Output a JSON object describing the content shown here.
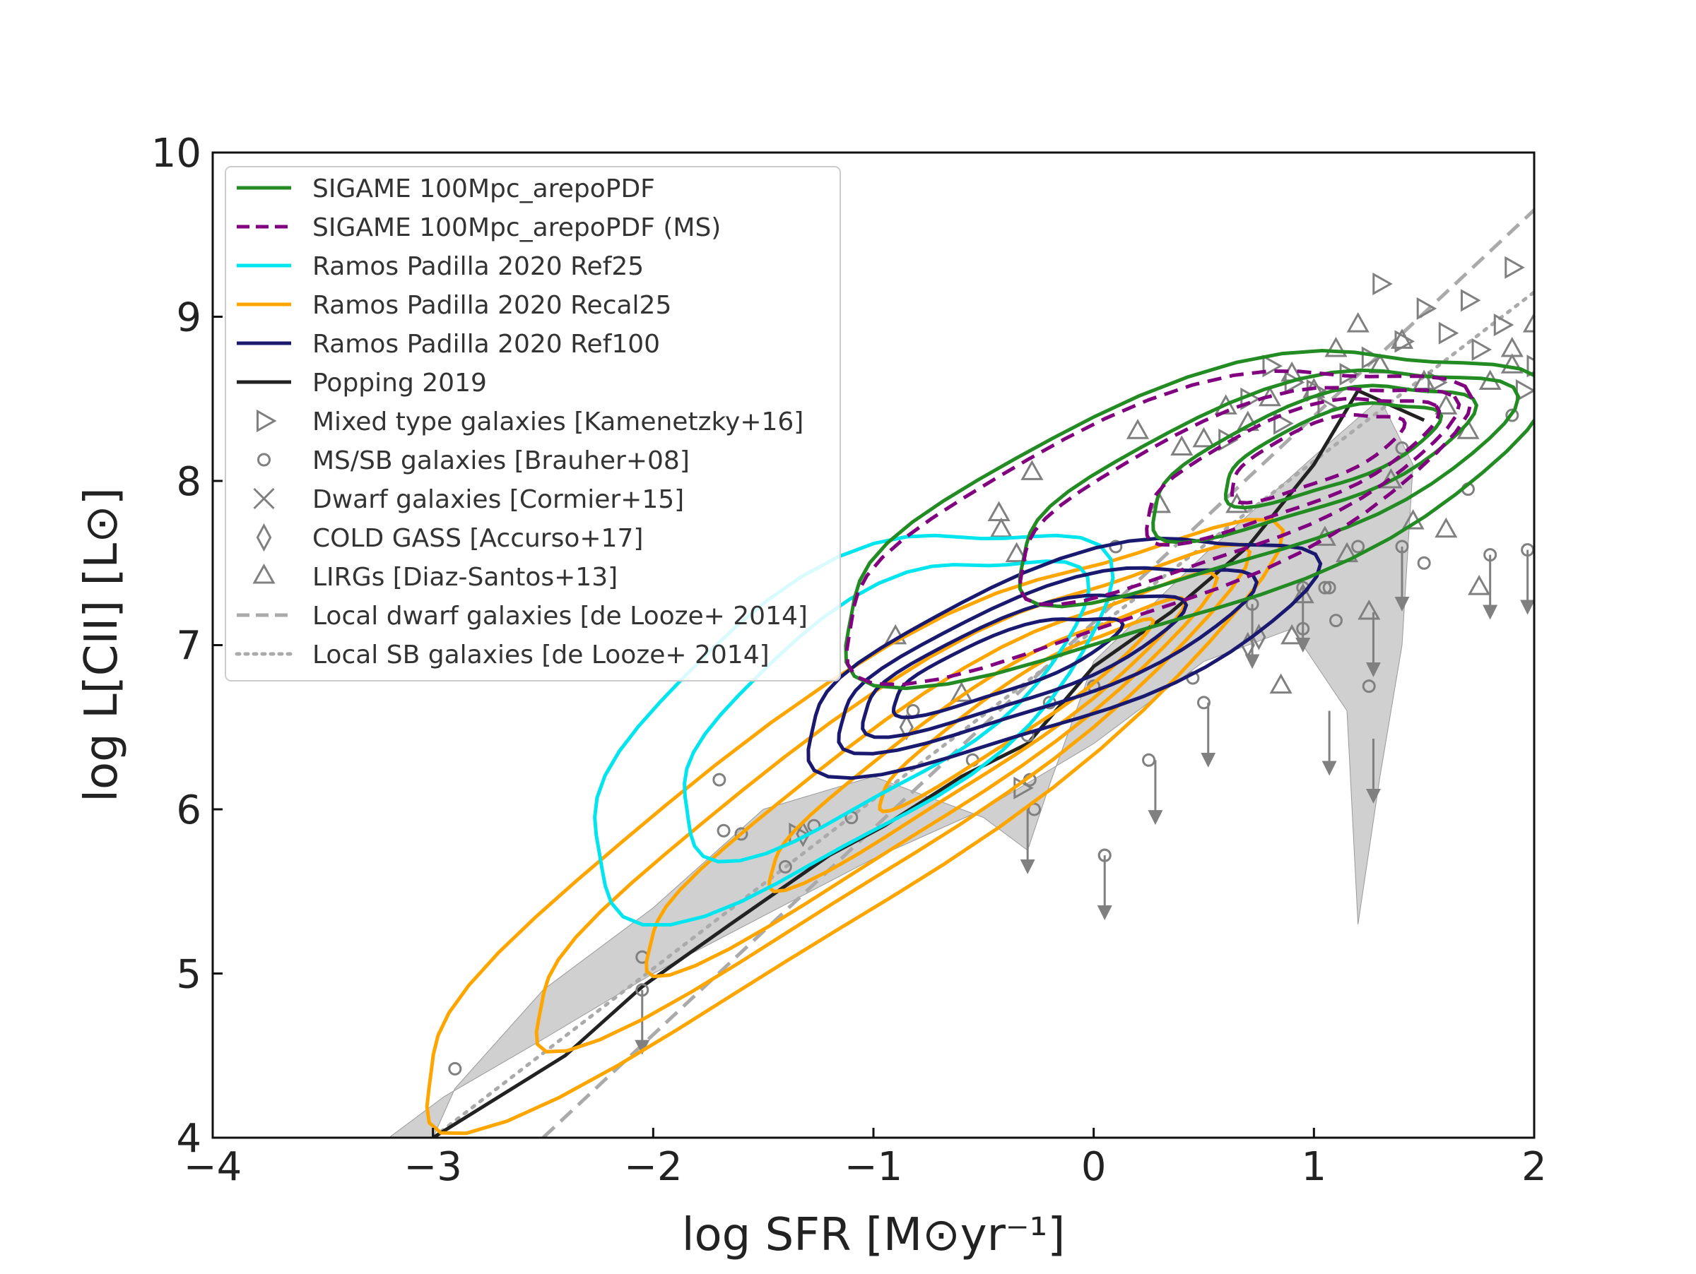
{
  "chart_data": {
    "type": "scatter",
    "title": "",
    "xlabel": "log SFR [M⊙yr⁻¹]",
    "ylabel": "log L[CII] [L⊙]",
    "xlim": [
      -4,
      2
    ],
    "ylim": [
      4,
      10
    ],
    "x_ticks": [
      -4,
      -3,
      -2,
      -1,
      0,
      1,
      2
    ],
    "y_ticks": [
      4,
      5,
      6,
      7,
      8,
      9,
      10
    ],
    "x_tick_labels": [
      "−4",
      "−3",
      "−2",
      "−1",
      "0",
      "1",
      "2"
    ],
    "y_tick_labels": [
      "4",
      "5",
      "6",
      "7",
      "8",
      "9",
      "10"
    ],
    "grid": false,
    "legend_position": "upper-left",
    "legend": [
      {
        "label": "SIGAME 100Mpc_arepoPDF",
        "color": "#228b22",
        "style": "solid",
        "marker": "line"
      },
      {
        "label": "SIGAME 100Mpc_arepoPDF (MS)",
        "color": "#800080",
        "style": "dashed",
        "marker": "line"
      },
      {
        "label": "Ramos Padilla 2020 Ref25",
        "color": "#00e5ee",
        "style": "solid",
        "marker": "line"
      },
      {
        "label": "Ramos Padilla 2020 Recal25",
        "color": "#ffa500",
        "style": "solid",
        "marker": "line"
      },
      {
        "label": "Ramos Padilla 2020 Ref100",
        "color": "#191970",
        "style": "solid",
        "marker": "line"
      },
      {
        "label": "Popping 2019",
        "color": "#222222",
        "style": "solid",
        "marker": "line"
      },
      {
        "label": "Mixed type galaxies [Kamenetzky+16]",
        "color": "#808080",
        "style": "none",
        "marker": "triangle-right"
      },
      {
        "label": "MS/SB galaxies [Brauher+08]",
        "color": "#808080",
        "style": "none",
        "marker": "circle"
      },
      {
        "label": "Dwarf galaxies [Cormier+15]",
        "color": "#808080",
        "style": "none",
        "marker": "x"
      },
      {
        "label": "COLD GASS [Accurso+17]",
        "color": "#808080",
        "style": "none",
        "marker": "diamond"
      },
      {
        "label": "LIRGs [Diaz-Santos+13]",
        "color": "#808080",
        "style": "none",
        "marker": "triangle-up"
      },
      {
        "label": "Local dwarf galaxies [de Looze+ 2014]",
        "color": "#aaaaaa",
        "style": "dashed",
        "marker": "line"
      },
      {
        "label": "Local SB galaxies [de Looze+ 2014]",
        "color": "#aaaaaa",
        "style": "dotted",
        "marker": "line"
      }
    ],
    "popping_2019_line": {
      "x": [
        -3.0,
        -2.4,
        -2.05,
        -1.65,
        -1.2,
        -0.95,
        -0.6,
        -0.3,
        0.0,
        0.35,
        0.7,
        1.0,
        1.2,
        1.5
      ],
      "y": [
        4.0,
        4.5,
        4.92,
        5.3,
        5.72,
        5.9,
        6.2,
        6.4,
        6.87,
        7.2,
        7.6,
        8.1,
        8.55,
        8.37
      ]
    },
    "popping_2019_shaded_band": [
      [
        -3.2,
        4.0
      ],
      [
        -2.95,
        4.25
      ],
      [
        -2.5,
        4.6
      ],
      [
        -2.0,
        5.0
      ],
      [
        -1.5,
        5.35
      ],
      [
        -1.0,
        5.7
      ],
      [
        -0.5,
        6.0
      ],
      [
        0.0,
        6.4
      ],
      [
        0.5,
        6.9
      ],
      [
        0.9,
        7.1
      ],
      [
        1.15,
        6.6
      ],
      [
        1.2,
        5.3
      ],
      [
        1.3,
        6.2
      ],
      [
        1.4,
        7.0
      ],
      [
        1.45,
        8.1
      ],
      [
        1.3,
        8.5
      ],
      [
        1.0,
        8.15
      ],
      [
        0.5,
        7.55
      ],
      [
        0.0,
        6.9
      ],
      [
        -0.2,
        6.15
      ],
      [
        -0.3,
        5.75
      ],
      [
        -0.5,
        5.95
      ],
      [
        -1.0,
        6.2
      ],
      [
        -1.5,
        6.0
      ],
      [
        -2.0,
        5.4
      ],
      [
        -2.5,
        4.9
      ],
      [
        -2.9,
        4.3
      ],
      [
        -3.0,
        4.0
      ]
    ],
    "local_dwarf_line": {
      "x": [
        -2.5,
        2.0
      ],
      "y": [
        4.0,
        9.65
      ]
    },
    "local_sb_line": {
      "x": [
        -3.0,
        2.0
      ],
      "y": [
        4.0,
        9.15
      ]
    },
    "series_points": {
      "mixed_type_kamenetzky16": {
        "x": [
          0.7,
          0.9,
          1.0,
          1.15,
          1.3,
          1.4,
          1.5,
          1.6,
          1.75,
          1.9,
          2.0,
          -0.33,
          0.85,
          1.05,
          1.25,
          1.55,
          1.7,
          1.85,
          1.95,
          -1.35,
          0.6,
          0.8
        ],
        "y": [
          8.5,
          8.6,
          8.55,
          8.65,
          9.2,
          8.85,
          9.05,
          8.9,
          8.8,
          9.3,
          8.7,
          6.13,
          8.35,
          8.45,
          8.75,
          8.6,
          9.1,
          8.95,
          8.55,
          5.85,
          8.25,
          8.7
        ]
      },
      "ms_sb_brauher08": {
        "x": [
          -2.9,
          -2.05,
          -2.05,
          -1.7,
          -1.68,
          -1.6,
          -1.4,
          -1.27,
          -1.1,
          -0.82,
          -0.55,
          -0.29,
          -0.27,
          -0.3,
          0.0,
          0.05,
          0.1,
          0.45,
          0.5,
          0.05,
          0.95,
          1.05,
          1.1,
          1.2,
          1.25,
          1.4,
          1.5,
          1.7,
          1.8,
          1.9,
          1.97,
          0.72,
          0.95,
          1.07,
          1.4,
          -0.2,
          0.25
        ],
        "y": [
          4.42,
          5.1,
          4.9,
          6.18,
          5.87,
          5.85,
          5.65,
          5.9,
          5.95,
          6.6,
          6.3,
          6.18,
          6.0,
          6.45,
          6.75,
          5.72,
          7.6,
          6.8,
          6.65,
          5.72,
          7.35,
          7.35,
          7.15,
          7.6,
          6.75,
          7.6,
          7.5,
          7.95,
          7.55,
          8.4,
          7.58,
          7.25,
          7.1,
          7.35,
          8.2,
          6.65,
          6.3
        ]
      },
      "cold_gass_accurso17": {
        "x": [
          -1.32,
          -0.85,
          0.7,
          0.75
        ],
        "y": [
          5.85,
          6.5,
          7.0,
          7.05
        ]
      },
      "lirgs_diaz_santos13": {
        "x": [
          -0.43,
          -0.42,
          -0.35,
          -0.28,
          0.2,
          0.3,
          0.4,
          0.5,
          0.6,
          0.7,
          0.8,
          0.9,
          1.0,
          1.1,
          1.2,
          1.3,
          1.4,
          1.5,
          1.6,
          1.7,
          1.8,
          1.9,
          2.0,
          1.15,
          1.25,
          1.35,
          1.45,
          1.6,
          1.75,
          0.95,
          1.05,
          0.85,
          0.65,
          -0.9,
          -0.6,
          1.9,
          0.9
        ],
        "y": [
          7.8,
          7.7,
          7.55,
          8.05,
          8.3,
          7.85,
          8.2,
          8.25,
          8.45,
          8.35,
          8.5,
          8.65,
          8.55,
          8.8,
          8.95,
          8.7,
          8.85,
          8.6,
          8.45,
          8.3,
          8.6,
          8.8,
          8.95,
          7.55,
          7.2,
          8.0,
          7.75,
          7.7,
          7.35,
          7.3,
          7.65,
          6.75,
          7.85,
          7.05,
          6.7,
          8.7,
          7.05
        ]
      },
      "upper_limits": {
        "x": [
          -2.05,
          -0.3,
          0.05,
          0.28,
          0.52,
          0.72,
          0.95,
          1.07,
          1.27,
          1.4,
          1.8,
          1.97,
          1.27
        ],
        "y": [
          4.9,
          6.0,
          5.72,
          6.3,
          6.65,
          7.25,
          7.35,
          6.6,
          7.2,
          7.6,
          7.55,
          7.58,
          6.43
        ]
      }
    }
  }
}
